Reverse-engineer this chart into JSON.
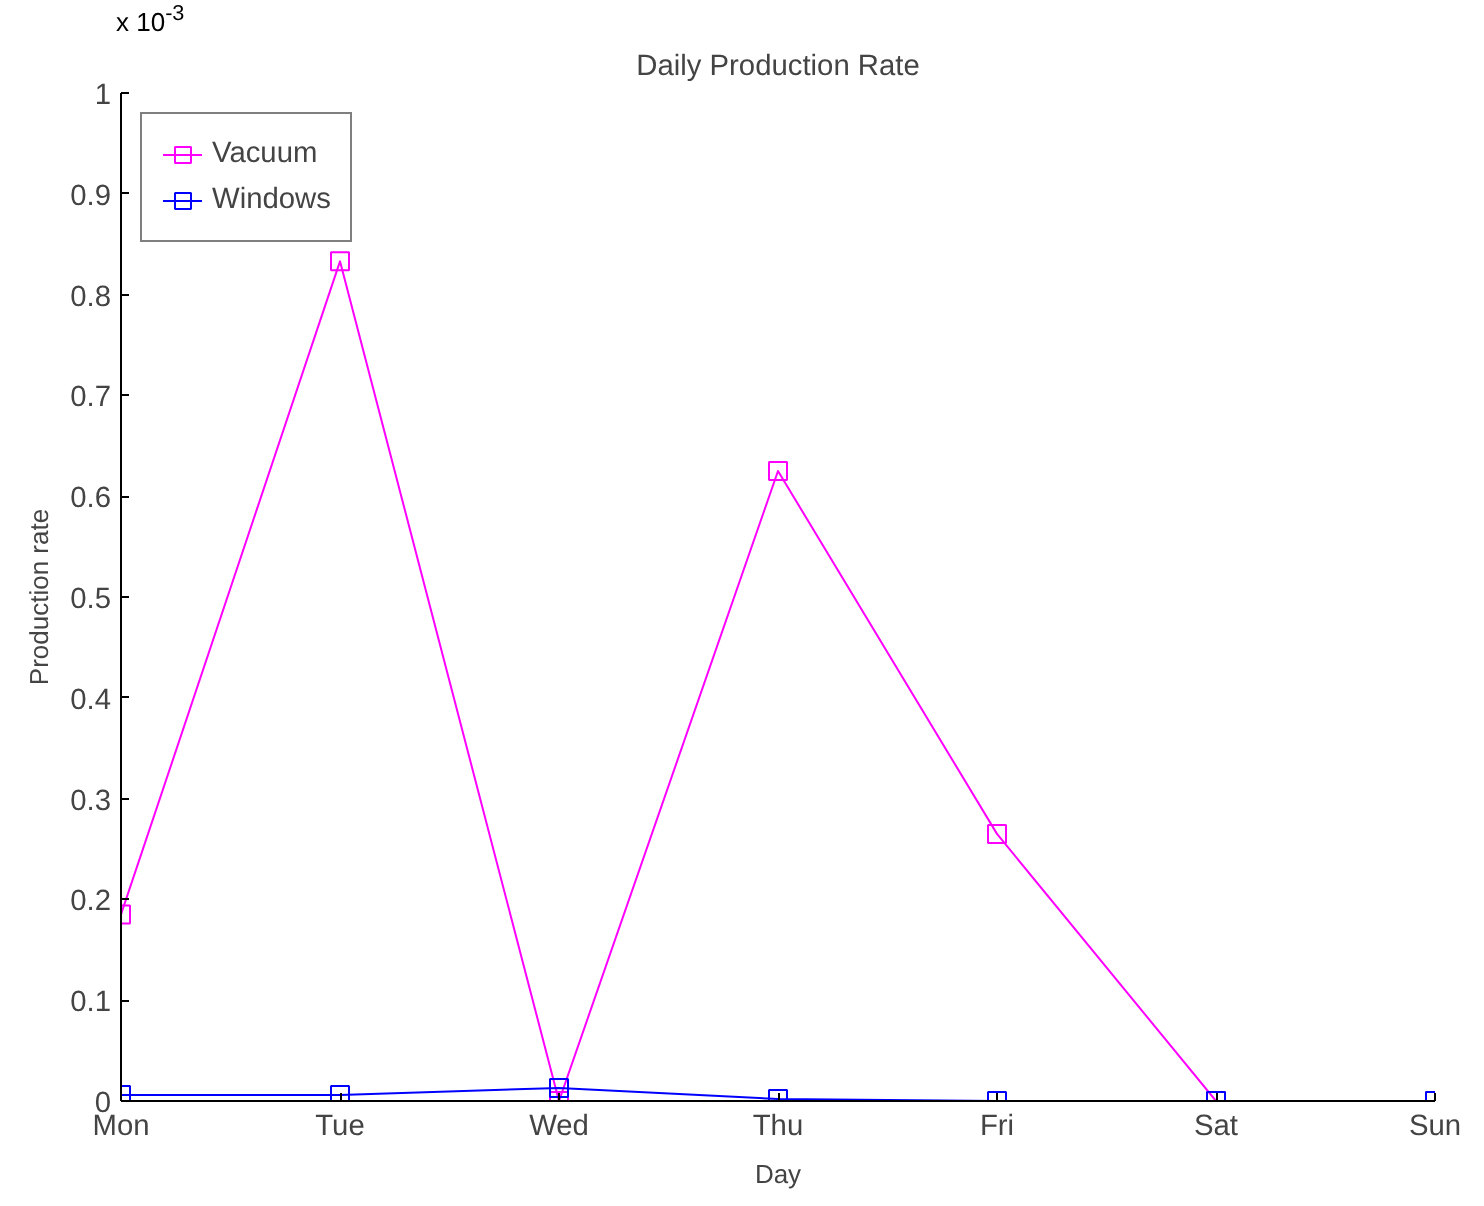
{
  "chart_data": {
    "type": "line",
    "title": "Daily Production Rate",
    "xlabel": "Day",
    "ylabel": "Production rate",
    "annotations": [
      "x 10$^{-3}$"
    ],
    "categories": [
      "Mon",
      "Tue",
      "Wed",
      "Thu",
      "Fri",
      "Sat",
      "Sun"
    ],
    "series": [
      {
        "name": "Vacuum",
        "color": "#ff00ff",
        "values": [
          0.185,
          0.833,
          0.0,
          0.625,
          0.265,
          0.0,
          0.0
        ]
      },
      {
        "name": "Windows",
        "color": "#0000ff",
        "values": [
          0.006,
          0.006,
          0.013,
          0.002,
          0.0,
          0.0,
          0.0
        ]
      }
    ],
    "ylim": [
      0,
      1
    ],
    "yticks": [
      0,
      0.1,
      0.2,
      0.3,
      0.4,
      0.5,
      0.6,
      0.7,
      0.8,
      0.9,
      1
    ],
    "marker": "square",
    "line_style": "solid",
    "legend": "top left",
    "grid": false
  }
}
